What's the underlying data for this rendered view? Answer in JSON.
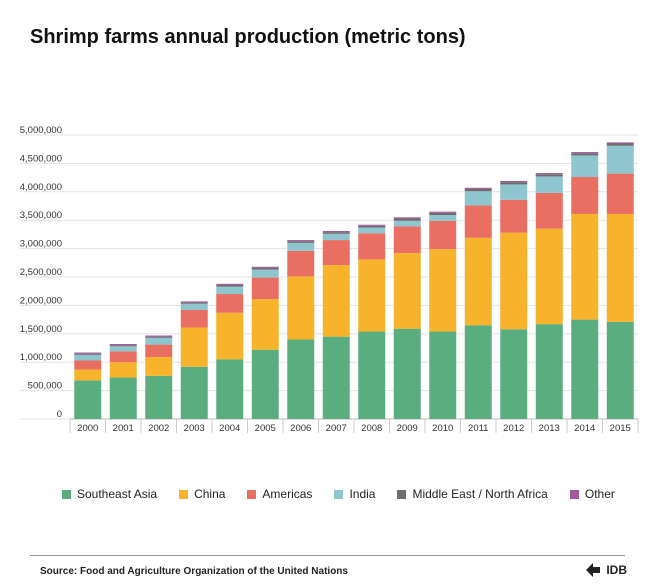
{
  "title": "Shrimp farms annual production (metric tons)",
  "source": "Source: Food and Agriculture Organization of the United Nations",
  "logo_text": "IDB",
  "chart_data": {
    "type": "bar",
    "stacked": true,
    "title": "Shrimp farms annual production (metric tons)",
    "xlabel": "",
    "ylabel": "",
    "ylim": [
      0,
      5000000
    ],
    "yticks": [
      "0",
      "500,000",
      "1,000,000",
      "1,500,000",
      "2,000,000",
      "2,500,000",
      "3,000,000",
      "3,500,000",
      "4,000,000",
      "4,500,000",
      "5,000,000"
    ],
    "ytick_values": [
      0,
      500000,
      1000000,
      1500000,
      2000000,
      2500000,
      3000000,
      3500000,
      4000000,
      4500000,
      5000000
    ],
    "grid": true,
    "legend_position": "bottom",
    "categories": [
      "2000",
      "2001",
      "2002",
      "2003",
      "2004",
      "2005",
      "2006",
      "2007",
      "2008",
      "2009",
      "2010",
      "2011",
      "2012",
      "2013",
      "2014",
      "2015"
    ],
    "series": [
      {
        "name": "Southeast Asia",
        "color": "#5aad7e",
        "values": [
          680000,
          730000,
          760000,
          920000,
          1050000,
          1220000,
          1400000,
          1450000,
          1540000,
          1590000,
          1540000,
          1650000,
          1580000,
          1670000,
          1750000,
          1710000
        ]
      },
      {
        "name": "China",
        "color": "#f7b32b",
        "values": [
          190000,
          270000,
          330000,
          690000,
          820000,
          890000,
          1110000,
          1260000,
          1270000,
          1330000,
          1450000,
          1540000,
          1700000,
          1680000,
          1860000,
          1900000
        ]
      },
      {
        "name": "Americas",
        "color": "#ea6f63",
        "values": [
          160000,
          190000,
          220000,
          310000,
          330000,
          380000,
          450000,
          440000,
          460000,
          470000,
          500000,
          570000,
          580000,
          630000,
          650000,
          710000
        ]
      },
      {
        "name": "India",
        "color": "#8ec5cf",
        "values": [
          100000,
          90000,
          120000,
          110000,
          130000,
          140000,
          140000,
          110000,
          100000,
          100000,
          100000,
          250000,
          270000,
          290000,
          380000,
          490000
        ]
      },
      {
        "name": "Middle East / North Africa",
        "color": "#6e6e6e",
        "values": [
          20000,
          20000,
          20000,
          20000,
          30000,
          30000,
          30000,
          30000,
          30000,
          40000,
          40000,
          40000,
          40000,
          40000,
          40000,
          40000
        ]
      },
      {
        "name": "Other",
        "color": "#a05a9c",
        "values": [
          20000,
          20000,
          20000,
          20000,
          20000,
          20000,
          20000,
          20000,
          20000,
          20000,
          20000,
          20000,
          20000,
          20000,
          20000,
          20000
        ]
      }
    ]
  }
}
